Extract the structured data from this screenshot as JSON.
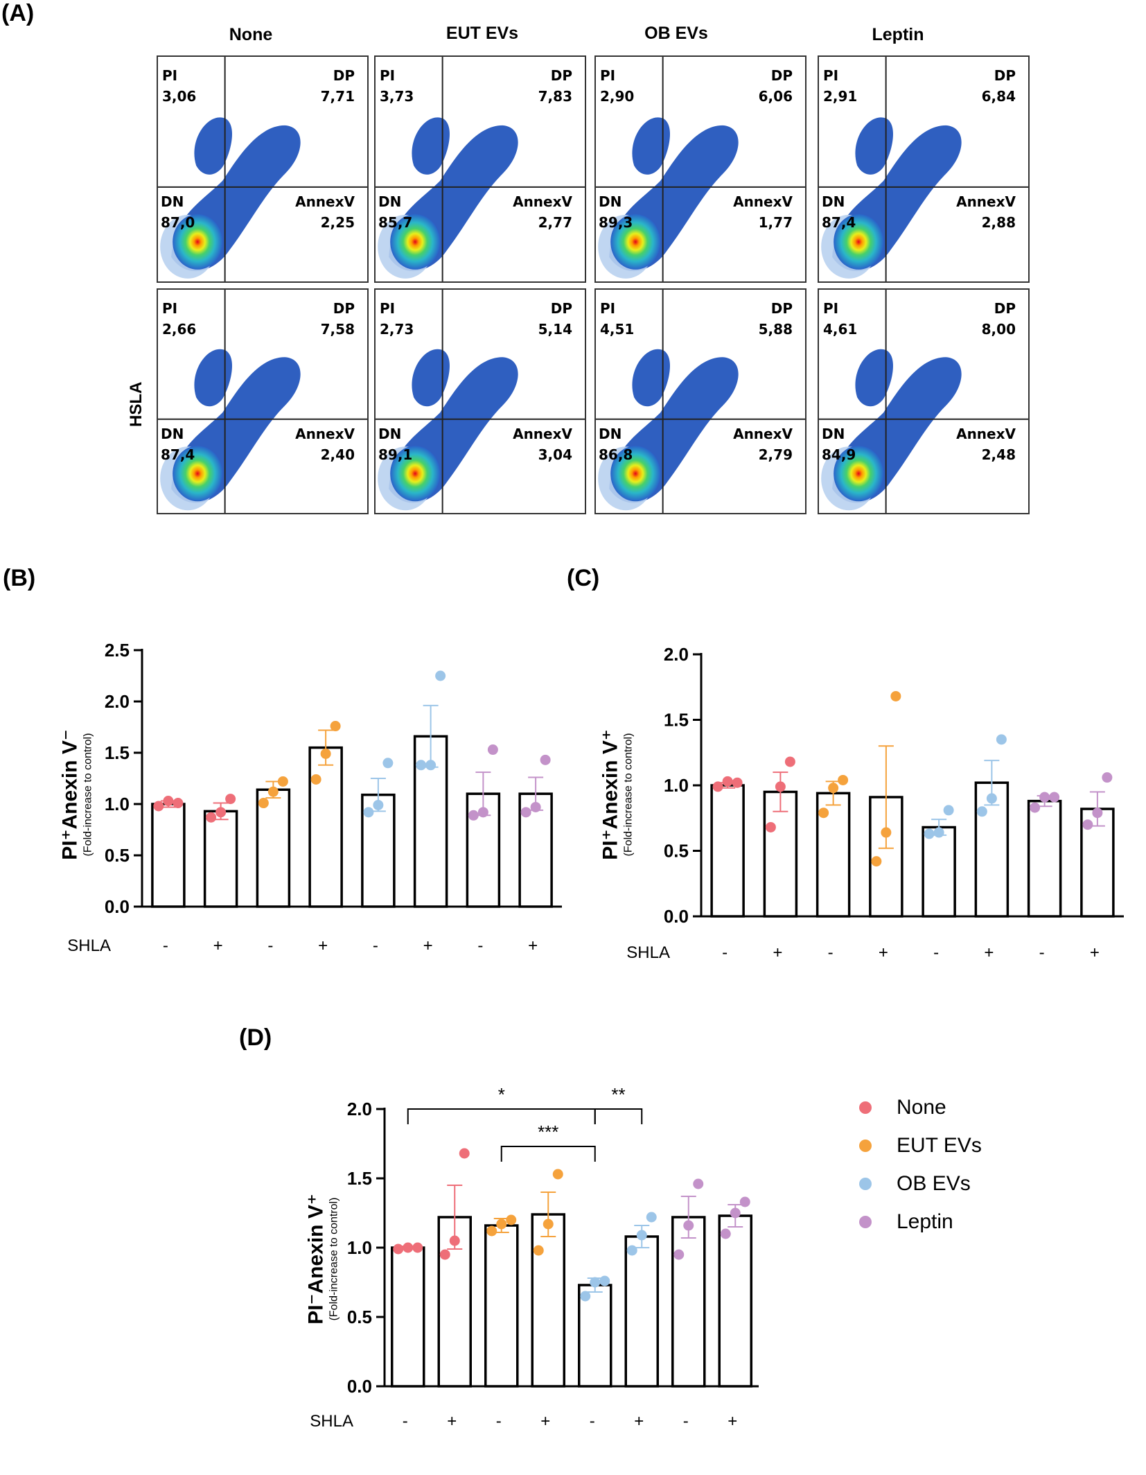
{
  "panel_labels": {
    "a": "(A)",
    "b": "(B)",
    "c": "(C)",
    "d": "(D)"
  },
  "flow": {
    "conditions": [
      "None",
      "EUT EVs",
      "OB EVs",
      "Leptin"
    ],
    "row2_label": "HSLA",
    "quadrant_labels": {
      "pi": "PI",
      "dp": "DP",
      "dn": "DN",
      "annex": "AnnexV"
    },
    "rows": [
      [
        {
          "pi": "3,06",
          "dp": "7,71",
          "dn": "87,0",
          "annex": "2,25"
        },
        {
          "pi": "3,73",
          "dp": "7,83",
          "dn": "85,7",
          "annex": "2,77"
        },
        {
          "pi": "2,90",
          "dp": "6,06",
          "dn": "89,3",
          "annex": "1,77"
        },
        {
          "pi": "2,91",
          "dp": "6,84",
          "dn": "87,4",
          "annex": "2,88"
        }
      ],
      [
        {
          "pi": "2,66",
          "dp": "7,58",
          "dn": "87,4",
          "annex": "2,40"
        },
        {
          "pi": "2,73",
          "dp": "5,14",
          "dn": "89,1",
          "annex": "3,04"
        },
        {
          "pi": "4,51",
          "dp": "5,88",
          "dn": "86,8",
          "annex": "2,79"
        },
        {
          "pi": "4,61",
          "dp": "8,00",
          "dn": "84,9",
          "annex": "2,48"
        }
      ]
    ]
  },
  "colors": {
    "None": "#ee6e78",
    "EUT EVs": "#f5a23c",
    "OB EVs": "#9cc5e8",
    "Leptin": "#c392c9"
  },
  "legend": [
    "None",
    "EUT EVs",
    "OB EVs",
    "Leptin"
  ],
  "chart_data": [
    {
      "id": "B",
      "type": "bar",
      "ylabel_main": "PI⁺Anexin V⁻",
      "ylabel_sub": "(Fold-increase to control)",
      "ylim": [
        0,
        2.5
      ],
      "yticks": [
        "0.0",
        "0.5",
        "1.0",
        "1.5",
        "2.0",
        "2.5"
      ],
      "xlabel_prefix": "SHLA",
      "categories": [
        "-",
        "+",
        "-",
        "+",
        "-",
        "+",
        "-",
        "+"
      ],
      "groups": [
        "None",
        "None",
        "EUT EVs",
        "EUT EVs",
        "OB EVs",
        "OB EVs",
        "Leptin",
        "Leptin"
      ],
      "values": [
        1.0,
        0.93,
        1.14,
        1.55,
        1.09,
        1.66,
        1.1,
        1.1
      ],
      "errors": [
        0.03,
        0.08,
        0.08,
        0.17,
        0.16,
        0.3,
        0.21,
        0.16
      ],
      "points": [
        [
          0.98,
          1.03,
          1.01
        ],
        [
          0.87,
          0.92,
          1.05
        ],
        [
          1.01,
          1.12,
          1.22
        ],
        [
          1.24,
          1.49,
          1.76
        ],
        [
          0.92,
          0.99,
          1.4
        ],
        [
          1.38,
          1.38,
          2.25
        ],
        [
          0.89,
          0.92,
          1.53
        ],
        [
          0.92,
          0.97,
          1.43
        ]
      ],
      "significance": []
    },
    {
      "id": "C",
      "type": "bar",
      "ylabel_main": "PI⁺Anexin V⁺",
      "ylabel_sub": "(Fold-increase to control)",
      "ylim": [
        0,
        2.0
      ],
      "yticks": [
        "0.0",
        "0.5",
        "1.0",
        "1.5",
        "2.0"
      ],
      "xlabel_prefix": "SHLA",
      "categories": [
        "-",
        "+",
        "-",
        "+",
        "-",
        "+",
        "-",
        "+"
      ],
      "groups": [
        "None",
        "None",
        "EUT EVs",
        "EUT EVs",
        "OB EVs",
        "OB EVs",
        "Leptin",
        "Leptin"
      ],
      "values": [
        1.0,
        0.95,
        0.94,
        0.91,
        0.68,
        1.02,
        0.88,
        0.82
      ],
      "errors": [
        0.02,
        0.15,
        0.09,
        0.39,
        0.06,
        0.17,
        0.04,
        0.13
      ],
      "points": [
        [
          0.99,
          1.03,
          1.02
        ],
        [
          0.68,
          0.99,
          1.18
        ],
        [
          0.79,
          0.98,
          1.04
        ],
        [
          0.42,
          0.64,
          1.68
        ],
        [
          0.63,
          0.64,
          0.81
        ],
        [
          0.8,
          0.9,
          1.35
        ],
        [
          0.83,
          0.91,
          0.91
        ],
        [
          0.7,
          0.79,
          1.06
        ]
      ],
      "significance": []
    },
    {
      "id": "D",
      "type": "bar",
      "ylabel_main": "PI⁻Anexin V⁺",
      "ylabel_sub": "(Fold-increase to control)",
      "ylim": [
        0,
        2.0
      ],
      "yticks": [
        "0.0",
        "0.5",
        "1.0",
        "1.5",
        "2.0"
      ],
      "xlabel_prefix": "SHLA",
      "categories": [
        "-",
        "+",
        "-",
        "+",
        "-",
        "+",
        "-",
        "+"
      ],
      "groups": [
        "None",
        "None",
        "EUT EVs",
        "EUT EVs",
        "OB EVs",
        "OB EVs",
        "Leptin",
        "Leptin"
      ],
      "values": [
        1.0,
        1.22,
        1.16,
        1.24,
        0.73,
        1.08,
        1.22,
        1.23
      ],
      "errors": [
        0.01,
        0.23,
        0.05,
        0.16,
        0.05,
        0.08,
        0.15,
        0.08
      ],
      "points": [
        [
          0.99,
          1.0,
          1.0
        ],
        [
          0.95,
          1.05,
          1.68
        ],
        [
          1.12,
          1.17,
          1.2
        ],
        [
          0.98,
          1.17,
          1.53
        ],
        [
          0.65,
          0.75,
          0.76
        ],
        [
          0.98,
          1.09,
          1.22
        ],
        [
          0.95,
          1.16,
          1.46
        ],
        [
          1.1,
          1.25,
          1.33
        ]
      ],
      "significance": [
        {
          "from": 0,
          "to": 4,
          "label": "*",
          "level": 2.0
        },
        {
          "from": 2,
          "to": 4,
          "label": "***",
          "level": 1.73
        },
        {
          "from": 4,
          "to": 5,
          "label": "**",
          "level": 2.0
        }
      ]
    }
  ]
}
